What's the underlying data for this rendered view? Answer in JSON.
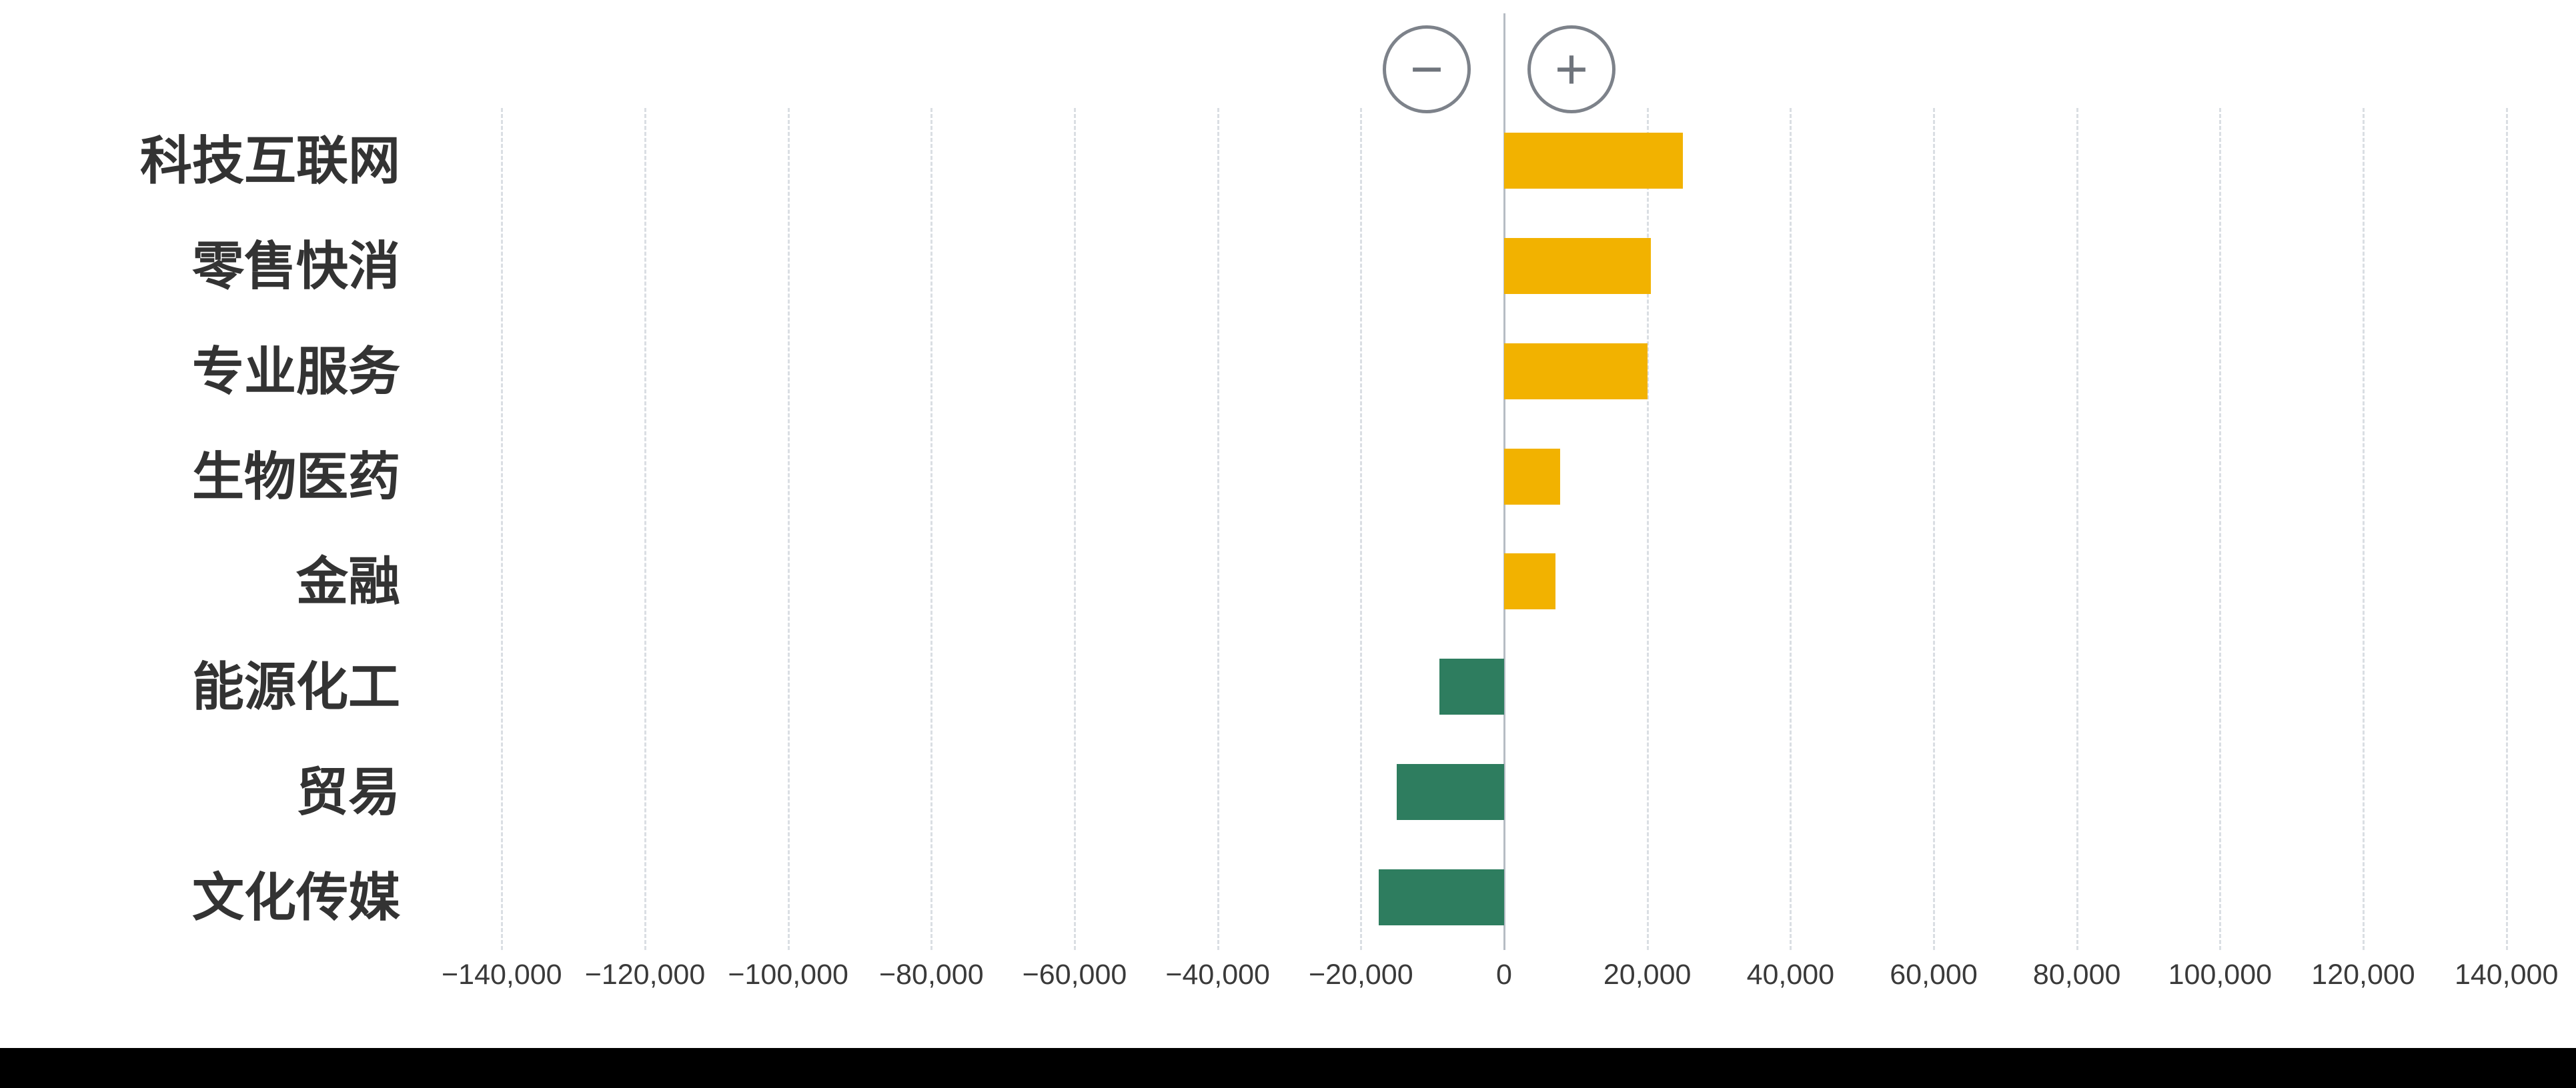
{
  "controls": {
    "zoom_out": "−",
    "zoom_in": "+"
  },
  "chart_data": {
    "type": "bar",
    "orientation": "horizontal",
    "title": "",
    "xlabel": "",
    "ylabel": "",
    "categories": [
      "科技互联网",
      "零售快消",
      "专业服务",
      "生物医药",
      "金融",
      "能源化工",
      "贸易",
      "文化传媒"
    ],
    "values": [
      25000,
      20500,
      20000,
      7800,
      7200,
      -9000,
      -15000,
      -17500
    ],
    "positive_color": "#F2B200",
    "negative_color": "#2E7D5F",
    "xlim": [
      -150000,
      150000
    ],
    "ticks": [
      -140000,
      -120000,
      -100000,
      -80000,
      -60000,
      -40000,
      -20000,
      0,
      20000,
      40000,
      60000,
      80000,
      100000,
      120000,
      140000
    ],
    "tick_labels": [
      "−140,000",
      "−120,000",
      "−100,000",
      "−80,000",
      "−60,000",
      "−40,000",
      "−20,000",
      "0",
      "20,000",
      "40,000",
      "60,000",
      "80,000",
      "100,000",
      "120,000",
      "140,000"
    ],
    "grid": true,
    "legend_position": "none"
  }
}
